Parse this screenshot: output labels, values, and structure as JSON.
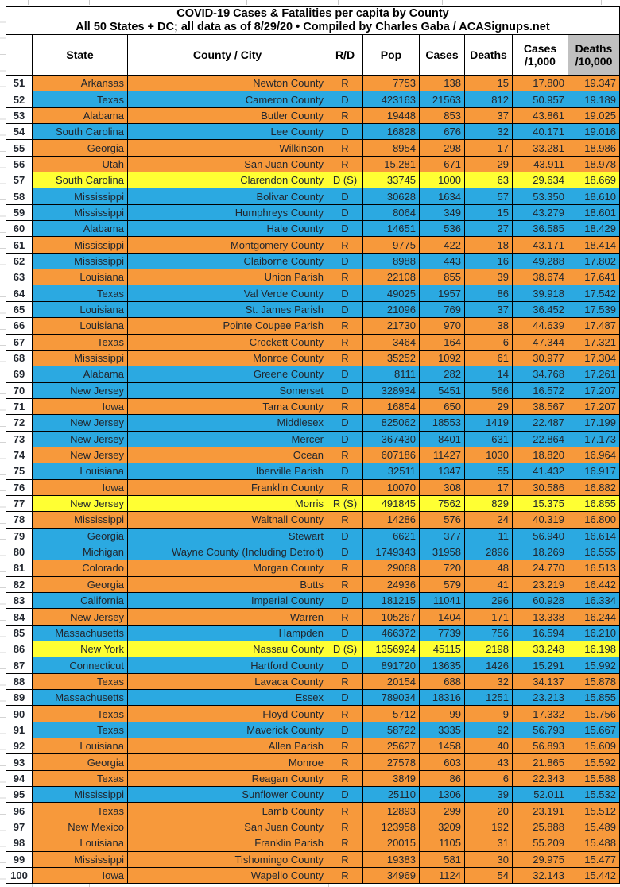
{
  "title": {
    "line1": "COVID-19 Cases & Fatalities per capita by County",
    "line2": "All 50 States + DC; all data as of 8/29/20  • Compiled by Charles Gaba / ACASignups.net"
  },
  "header": {
    "rank": "",
    "state": "State",
    "county": "County / City",
    "rd": "R/D",
    "pop": "Pop",
    "cases": "Cases",
    "deaths": "Deaths",
    "cases_k1": "Cases",
    "cases_k2": "/1,000",
    "deaths_10k1": "Deaths",
    "deaths_10k2": "/10,000"
  },
  "colors": {
    "republican": "#F7993B",
    "democrat": "#2BA9E1",
    "split": "#FFFF33",
    "header_gray": "#C0C0C0"
  },
  "rows": [
    {
      "rank": 51,
      "state": "Arkansas",
      "county": "Newton County",
      "rd": "R",
      "pop": "7753",
      "cases": "138",
      "deaths": "15",
      "cases_per_1000": "17.800",
      "deaths_per_10000": "19.347",
      "fill": "rep"
    },
    {
      "rank": 52,
      "state": "Texas",
      "county": "Cameron County",
      "rd": "D",
      "pop": "423163",
      "cases": "21563",
      "deaths": "812",
      "cases_per_1000": "50.957",
      "deaths_per_10000": "19.189",
      "fill": "dem",
      "county_small": true
    },
    {
      "rank": 53,
      "state": "Alabama",
      "county": "Butler County",
      "rd": "R",
      "pop": "19448",
      "cases": "853",
      "deaths": "37",
      "cases_per_1000": "43.861",
      "deaths_per_10000": "19.025",
      "fill": "rep"
    },
    {
      "rank": 54,
      "state": "South Carolina",
      "county": "Lee County",
      "rd": "D",
      "pop": "16828",
      "cases": "676",
      "deaths": "32",
      "cases_per_1000": "40.171",
      "deaths_per_10000": "19.016",
      "fill": "dem"
    },
    {
      "rank": 55,
      "state": "Georgia",
      "county": "Wilkinson",
      "rd": "R",
      "pop": "8954",
      "cases": "298",
      "deaths": "17",
      "cases_per_1000": "33.281",
      "deaths_per_10000": "18.986",
      "fill": "rep"
    },
    {
      "rank": 56,
      "state": "Utah",
      "county": "San Juan County",
      "rd": "R",
      "pop": "15,281",
      "cases": "671",
      "deaths": "29",
      "cases_per_1000": "43.911",
      "deaths_per_10000": "18.978",
      "fill": "rep"
    },
    {
      "rank": 57,
      "state": "South Carolina",
      "county": "Clarendon County",
      "rd": "D (S)",
      "pop": "33745",
      "cases": "1000",
      "deaths": "63",
      "cases_per_1000": "29.634",
      "deaths_per_10000": "18.669",
      "fill": "split"
    },
    {
      "rank": 58,
      "state": "Mississippi",
      "county": "Bolivar County",
      "rd": "D",
      "pop": "30628",
      "cases": "1634",
      "deaths": "57",
      "cases_per_1000": "53.350",
      "deaths_per_10000": "18.610",
      "fill": "dem"
    },
    {
      "rank": 59,
      "state": "Mississippi",
      "county": "Humphreys County",
      "rd": "D",
      "pop": "8064",
      "cases": "349",
      "deaths": "15",
      "cases_per_1000": "43.279",
      "deaths_per_10000": "18.601",
      "fill": "dem"
    },
    {
      "rank": 60,
      "state": "Alabama",
      "county": "Hale County",
      "rd": "D",
      "pop": "14651",
      "cases": "536",
      "deaths": "27",
      "cases_per_1000": "36.585",
      "deaths_per_10000": "18.429",
      "fill": "dem"
    },
    {
      "rank": 61,
      "state": "Mississippi",
      "county": "Montgomery County",
      "rd": "R",
      "pop": "9775",
      "cases": "422",
      "deaths": "18",
      "cases_per_1000": "43.171",
      "deaths_per_10000": "18.414",
      "fill": "rep"
    },
    {
      "rank": 62,
      "state": "Mississippi",
      "county": "Claiborne County",
      "rd": "D",
      "pop": "8988",
      "cases": "443",
      "deaths": "16",
      "cases_per_1000": "49.288",
      "deaths_per_10000": "17.802",
      "fill": "dem"
    },
    {
      "rank": 63,
      "state": "Louisiana",
      "county": "Union Parish",
      "rd": "R",
      "pop": "22108",
      "cases": "855",
      "deaths": "39",
      "cases_per_1000": "38.674",
      "deaths_per_10000": "17.641",
      "fill": "rep"
    },
    {
      "rank": 64,
      "state": "Texas",
      "county": "Val Verde County",
      "rd": "D",
      "pop": "49025",
      "cases": "1957",
      "deaths": "86",
      "cases_per_1000": "39.918",
      "deaths_per_10000": "17.542",
      "fill": "dem",
      "county_small": true
    },
    {
      "rank": 65,
      "state": "Louisiana",
      "county": "St. James Parish",
      "rd": "D",
      "pop": "21096",
      "cases": "769",
      "deaths": "37",
      "cases_per_1000": "36.452",
      "deaths_per_10000": "17.539",
      "fill": "dem"
    },
    {
      "rank": 66,
      "state": "Louisiana",
      "county": "Pointe Coupee Parish",
      "rd": "R",
      "pop": "21730",
      "cases": "970",
      "deaths": "38",
      "cases_per_1000": "44.639",
      "deaths_per_10000": "17.487",
      "fill": "rep"
    },
    {
      "rank": 67,
      "state": "Texas",
      "county": "Crockett County",
      "rd": "R",
      "pop": "3464",
      "cases": "164",
      "deaths": "6",
      "cases_per_1000": "47.344",
      "deaths_per_10000": "17.321",
      "fill": "rep"
    },
    {
      "rank": 68,
      "state": "Mississippi",
      "county": "Monroe County",
      "rd": "R",
      "pop": "35252",
      "cases": "1092",
      "deaths": "61",
      "cases_per_1000": "30.977",
      "deaths_per_10000": "17.304",
      "fill": "rep"
    },
    {
      "rank": 69,
      "state": "Alabama",
      "county": "Greene County",
      "rd": "D",
      "pop": "8111",
      "cases": "282",
      "deaths": "14",
      "cases_per_1000": "34.768",
      "deaths_per_10000": "17.261",
      "fill": "dem"
    },
    {
      "rank": 70,
      "state": "New Jersey",
      "county": "Somerset",
      "rd": "D",
      "pop": "328934",
      "cases": "5451",
      "deaths": "566",
      "cases_per_1000": "16.572",
      "deaths_per_10000": "17.207",
      "fill": "dem"
    },
    {
      "rank": 71,
      "state": "Iowa",
      "county": "Tama County",
      "rd": "R",
      "pop": "16854",
      "cases": "650",
      "deaths": "29",
      "cases_per_1000": "38.567",
      "deaths_per_10000": "17.207",
      "fill": "rep"
    },
    {
      "rank": 72,
      "state": "New Jersey",
      "county": "Middlesex",
      "rd": "D",
      "pop": "825062",
      "cases": "18553",
      "deaths": "1419",
      "cases_per_1000": "22.487",
      "deaths_per_10000": "17.199",
      "fill": "dem"
    },
    {
      "rank": 73,
      "state": "New Jersey",
      "county": "Mercer",
      "rd": "D",
      "pop": "367430",
      "cases": "8401",
      "deaths": "631",
      "cases_per_1000": "22.864",
      "deaths_per_10000": "17.173",
      "fill": "dem"
    },
    {
      "rank": 74,
      "state": "New Jersey",
      "county": "Ocean",
      "rd": "R",
      "pop": "607186",
      "cases": "11427",
      "deaths": "1030",
      "cases_per_1000": "18.820",
      "deaths_per_10000": "16.964",
      "fill": "rep"
    },
    {
      "rank": 75,
      "state": "Louisiana",
      "county": "Iberville Parish",
      "rd": "D",
      "pop": "32511",
      "cases": "1347",
      "deaths": "55",
      "cases_per_1000": "41.432",
      "deaths_per_10000": "16.917",
      "fill": "dem"
    },
    {
      "rank": 76,
      "state": "Iowa",
      "county": "Franklin County",
      "rd": "R",
      "pop": "10070",
      "cases": "308",
      "deaths": "17",
      "cases_per_1000": "30.586",
      "deaths_per_10000": "16.882",
      "fill": "rep"
    },
    {
      "rank": 77,
      "state": "New Jersey",
      "county": "Morris",
      "rd": "R (S)",
      "pop": "491845",
      "cases": "7562",
      "deaths": "829",
      "cases_per_1000": "15.375",
      "deaths_per_10000": "16.855",
      "fill": "split"
    },
    {
      "rank": 78,
      "state": "Mississippi",
      "county": "Walthall County",
      "rd": "R",
      "pop": "14286",
      "cases": "576",
      "deaths": "24",
      "cases_per_1000": "40.319",
      "deaths_per_10000": "16.800",
      "fill": "rep"
    },
    {
      "rank": 79,
      "state": "Georgia",
      "county": "Stewart",
      "rd": "D",
      "pop": "6621",
      "cases": "377",
      "deaths": "11",
      "cases_per_1000": "56.940",
      "deaths_per_10000": "16.614",
      "fill": "dem"
    },
    {
      "rank": 80,
      "state": "Michigan",
      "county": "Wayne County (Including Detroit)",
      "rd": "D",
      "pop": "1749343",
      "cases": "31958",
      "deaths": "2896",
      "cases_per_1000": "18.269",
      "deaths_per_10000": "16.555",
      "fill": "dem"
    },
    {
      "rank": 81,
      "state": "Colorado",
      "county": "Morgan County",
      "rd": "R",
      "pop": "29068",
      "cases": "720",
      "deaths": "48",
      "cases_per_1000": "24.770",
      "deaths_per_10000": "16.513",
      "fill": "rep"
    },
    {
      "rank": 82,
      "state": "Georgia",
      "county": "Butts",
      "rd": "R",
      "pop": "24936",
      "cases": "579",
      "deaths": "41",
      "cases_per_1000": "23.219",
      "deaths_per_10000": "16.442",
      "fill": "rep"
    },
    {
      "rank": 83,
      "state": "California",
      "county": "Imperial County",
      "rd": "D",
      "pop": "181215",
      "cases": "11041",
      "deaths": "296",
      "cases_per_1000": "60.928",
      "deaths_per_10000": "16.334",
      "fill": "dem"
    },
    {
      "rank": 84,
      "state": "New Jersey",
      "county": "Warren",
      "rd": "R",
      "pop": "105267",
      "cases": "1404",
      "deaths": "171",
      "cases_per_1000": "13.338",
      "deaths_per_10000": "16.244",
      "fill": "rep"
    },
    {
      "rank": 85,
      "state": "Massachusetts",
      "county": "Hampden",
      "rd": "D",
      "pop": "466372",
      "cases": "7739",
      "deaths": "756",
      "cases_per_1000": "16.594",
      "deaths_per_10000": "16.210",
      "fill": "dem"
    },
    {
      "rank": 86,
      "state": "New York",
      "county": "Nassau County",
      "rd": "D (S)",
      "pop": "1356924",
      "cases": "45115",
      "deaths": "2198",
      "cases_per_1000": "33.248",
      "deaths_per_10000": "16.198",
      "fill": "split"
    },
    {
      "rank": 87,
      "state": "Connecticut",
      "county": "Hartford County",
      "rd": "D",
      "pop": "891720",
      "cases": "13635",
      "deaths": "1426",
      "cases_per_1000": "15.291",
      "deaths_per_10000": "15.992",
      "fill": "dem"
    },
    {
      "rank": 88,
      "state": "Texas",
      "county": "Lavaca County",
      "rd": "R",
      "pop": "20154",
      "cases": "688",
      "deaths": "32",
      "cases_per_1000": "34.137",
      "deaths_per_10000": "15.878",
      "fill": "rep"
    },
    {
      "rank": 89,
      "state": "Massachusetts",
      "county": "Essex",
      "rd": "D",
      "pop": "789034",
      "cases": "18316",
      "deaths": "1251",
      "cases_per_1000": "23.213",
      "deaths_per_10000": "15.855",
      "fill": "dem"
    },
    {
      "rank": 90,
      "state": "Texas",
      "county": "Floyd County",
      "rd": "R",
      "pop": "5712",
      "cases": "99",
      "deaths": "9",
      "cases_per_1000": "17.332",
      "deaths_per_10000": "15.756",
      "fill": "rep"
    },
    {
      "rank": 91,
      "state": "Texas",
      "county": "Maverick County",
      "rd": "D",
      "pop": "58722",
      "cases": "3335",
      "deaths": "92",
      "cases_per_1000": "56.793",
      "deaths_per_10000": "15.667",
      "fill": "dem",
      "county_small": true
    },
    {
      "rank": 92,
      "state": "Louisiana",
      "county": "Allen Parish",
      "rd": "R",
      "pop": "25627",
      "cases": "1458",
      "deaths": "40",
      "cases_per_1000": "56.893",
      "deaths_per_10000": "15.609",
      "fill": "rep"
    },
    {
      "rank": 93,
      "state": "Georgia",
      "county": "Monroe",
      "rd": "R",
      "pop": "27578",
      "cases": "603",
      "deaths": "43",
      "cases_per_1000": "21.865",
      "deaths_per_10000": "15.592",
      "fill": "rep"
    },
    {
      "rank": 94,
      "state": "Texas",
      "county": "Reagan County",
      "rd": "R",
      "pop": "3849",
      "cases": "86",
      "deaths": "6",
      "cases_per_1000": "22.343",
      "deaths_per_10000": "15.588",
      "fill": "rep"
    },
    {
      "rank": 95,
      "state": "Mississippi",
      "county": "Sunflower County",
      "rd": "D",
      "pop": "25110",
      "cases": "1306",
      "deaths": "39",
      "cases_per_1000": "52.011",
      "deaths_per_10000": "15.532",
      "fill": "dem"
    },
    {
      "rank": 96,
      "state": "Texas",
      "county": "Lamb County",
      "rd": "R",
      "pop": "12893",
      "cases": "299",
      "deaths": "20",
      "cases_per_1000": "23.191",
      "deaths_per_10000": "15.512",
      "fill": "rep"
    },
    {
      "rank": 97,
      "state": "New Mexico",
      "county": "San Juan County",
      "rd": "R",
      "pop": "123958",
      "cases": "3209",
      "deaths": "192",
      "cases_per_1000": "25.888",
      "deaths_per_10000": "15.489",
      "fill": "rep"
    },
    {
      "rank": 98,
      "state": "Louisiana",
      "county": "Franklin Parish",
      "rd": "R",
      "pop": "20015",
      "cases": "1105",
      "deaths": "31",
      "cases_per_1000": "55.209",
      "deaths_per_10000": "15.488",
      "fill": "rep"
    },
    {
      "rank": 99,
      "state": "Mississippi",
      "county": "Tishomingo County",
      "rd": "R",
      "pop": "19383",
      "cases": "581",
      "deaths": "30",
      "cases_per_1000": "29.975",
      "deaths_per_10000": "15.477",
      "fill": "rep"
    },
    {
      "rank": 100,
      "state": "Iowa",
      "county": "Wapello County",
      "rd": "R",
      "pop": "34969",
      "cases": "1124",
      "deaths": "54",
      "cases_per_1000": "32.143",
      "deaths_per_10000": "15.442",
      "fill": "rep"
    }
  ]
}
